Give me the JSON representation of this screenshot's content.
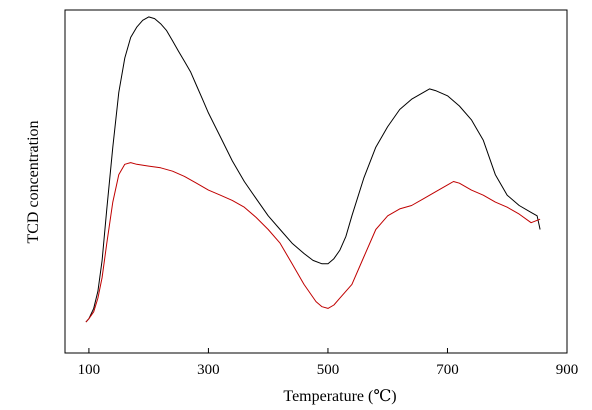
{
  "chart_data": {
    "type": "line",
    "title": "",
    "xlabel": "Temperature (℃)",
    "ylabel": "TCD concentration",
    "xlim": [
      60,
      900
    ],
    "ylim": [
      0,
      100
    ],
    "xticks": [
      100,
      300,
      500,
      700,
      900
    ],
    "y_tick_labels": false,
    "grid": false,
    "legend": "none",
    "series": [
      {
        "color": "#000000",
        "x": [
          95,
          100,
          108,
          115,
          122,
          130,
          140,
          150,
          160,
          170,
          180,
          190,
          200,
          210,
          220,
          230,
          240,
          250,
          260,
          270,
          280,
          290,
          300,
          320,
          340,
          360,
          380,
          400,
          420,
          440,
          460,
          475,
          490,
          500,
          510,
          520,
          530,
          540,
          560,
          580,
          600,
          620,
          640,
          660,
          670,
          680,
          700,
          720,
          740,
          760,
          780,
          800,
          820,
          840,
          850,
          855
        ],
        "y": [
          9,
          10,
          13,
          18,
          27,
          42,
          60,
          76,
          86,
          92,
          95,
          97,
          98,
          97.5,
          96,
          94,
          91,
          88,
          85,
          82,
          78,
          74,
          70,
          63,
          56,
          50,
          45,
          40,
          36,
          32,
          29,
          27,
          26,
          26,
          27.5,
          30,
          34,
          40,
          51,
          60,
          66,
          71,
          74,
          76,
          77,
          76.5,
          75,
          72,
          68,
          62,
          52,
          46,
          43,
          41,
          40,
          36
        ]
      },
      {
        "color": "#c00000",
        "x": [
          95,
          100,
          108,
          115,
          122,
          130,
          140,
          150,
          160,
          170,
          180,
          200,
          220,
          240,
          260,
          280,
          300,
          320,
          340,
          360,
          380,
          400,
          420,
          440,
          460,
          480,
          490,
          500,
          510,
          520,
          540,
          560,
          580,
          600,
          620,
          640,
          660,
          680,
          700,
          710,
          720,
          740,
          760,
          780,
          800,
          820,
          840,
          855
        ],
        "y": [
          9,
          10,
          12,
          16,
          22,
          32,
          44,
          52,
          55,
          55.5,
          55,
          54.5,
          54,
          53,
          51.5,
          49.5,
          47.5,
          46,
          44.5,
          42.5,
          39.5,
          36,
          32,
          26,
          20,
          15,
          13.5,
          13,
          14,
          16,
          20,
          28,
          36,
          40,
          42,
          43,
          45,
          47,
          49,
          50,
          49.5,
          47.5,
          46,
          44,
          42.5,
          40.5,
          38,
          39
        ]
      }
    ]
  }
}
